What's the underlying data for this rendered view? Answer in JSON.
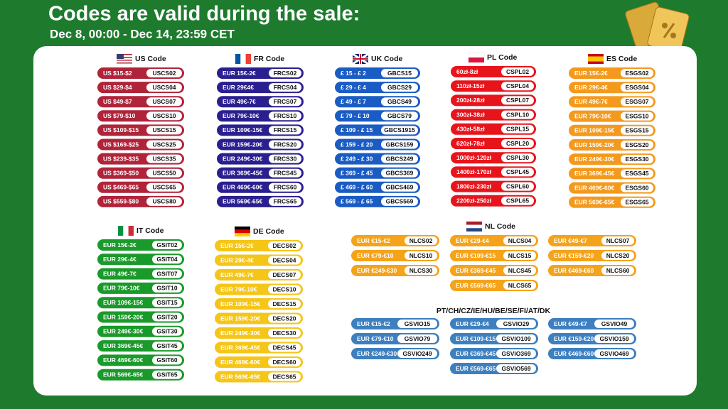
{
  "header": {
    "title": "Codes are valid during the sale:",
    "subtitle": "Dec 8, 00:00 - Dec 14, 23:59 CET"
  },
  "sections": [
    {
      "title": "US Code",
      "columns": [
        [
          [
            "US $15-$2",
            "USCS02"
          ],
          [
            "US $29-$4",
            "USCS04"
          ],
          [
            "US $49-$7",
            "USCS07"
          ],
          [
            "US $79-$10",
            "USCS10"
          ],
          [
            "US $109-$15",
            "USCS15"
          ],
          [
            "US $169-$25",
            "USCS25"
          ],
          [
            "US $239-$35",
            "USCS35"
          ],
          [
            "US $369-$50",
            "USCS50"
          ],
          [
            "US $469-$65",
            "USCS65"
          ],
          [
            "US $559-$80",
            "USCS80"
          ]
        ]
      ]
    },
    {
      "title": "FR Code",
      "columns": [
        [
          [
            "EUR 15€-2€",
            "FRCS02"
          ],
          [
            "EUR 29€4€",
            "FRCS04"
          ],
          [
            "EUR 49€-7€",
            "FRCS07"
          ],
          [
            "EUR 79€-10€",
            "FRCS10"
          ],
          [
            "EUR 109€-15€",
            "FRCS15"
          ],
          [
            "EUR 159€-20€",
            "FRCS20"
          ],
          [
            "EUR 249€-30€",
            "FRCS30"
          ],
          [
            "EUR 369€-45€",
            "FRCS45"
          ],
          [
            "EUR 469€-60€",
            "FRCS60"
          ],
          [
            "EUR 569€-65€",
            "FRCS65"
          ]
        ]
      ]
    },
    {
      "title": "UK Code",
      "columns": [
        [
          [
            "£ 15 - £ 2",
            "GBCS15"
          ],
          [
            "£ 29 - £ 4",
            "GBCS29"
          ],
          [
            "£ 49 - £ 7",
            "GBCS49"
          ],
          [
            "£ 79 - £ 10",
            "GBCS79"
          ],
          [
            "£ 109 - £ 15",
            "GBCS1915"
          ],
          [
            "£ 159 - £ 20",
            "GBCS159"
          ],
          [
            "£ 249 - £ 30",
            "GBCS249"
          ],
          [
            "£ 369 - £ 45",
            "GBCS369"
          ],
          [
            "£ 469 - £ 60",
            "GBCS469"
          ],
          [
            "£ 569 - £ 65",
            "GBCS569"
          ]
        ]
      ]
    },
    {
      "title": "PL Code",
      "columns": [
        [
          [
            "60zł-8zł",
            "CSPL02"
          ],
          [
            "110zł-15zł",
            "CSPL04"
          ],
          [
            "200zł-28zł",
            "CSPL07"
          ],
          [
            "300zł-38zł",
            "CSPL10"
          ],
          [
            "430zł-58zł",
            "CSPL15"
          ],
          [
            "620zł-78zł",
            "CSPL20"
          ],
          [
            "1000zł-120zł",
            "CSPL30"
          ],
          [
            "1400zł-170zł",
            "CSPL45"
          ],
          [
            "1800zł-230zł",
            "CSPL60"
          ],
          [
            "2200zł-250zł",
            "CSPL65"
          ]
        ]
      ]
    },
    {
      "title": "ES Code",
      "columns": [
        [
          [
            "EUR 15€-2€",
            "ESGS02"
          ],
          [
            "EUR 29€-4€",
            "ESGS04"
          ],
          [
            "EUR 49€-7€",
            "ESGS07"
          ],
          [
            "EUR 79€-10€",
            "ESGS10"
          ],
          [
            "EUR 109€-15€",
            "ESGS15"
          ],
          [
            "EUR 159€-20€",
            "ESGS20"
          ],
          [
            "EUR 249€-30€",
            "ESGS30"
          ],
          [
            "EUR 369€-45€",
            "ESGS45"
          ],
          [
            "EUR 469€-60€",
            "ESGS60"
          ],
          [
            "EUR 569€-65€",
            "ESGS65"
          ]
        ]
      ]
    },
    {
      "title": "IT Code",
      "columns": [
        [
          [
            "EUR 15€-2€",
            "GSIT02"
          ],
          [
            "EUR 29€-4€",
            "GSIT04"
          ],
          [
            "EUR 49€-7€",
            "GSIT07"
          ],
          [
            "EUR 79€-10€",
            "GSIT10"
          ],
          [
            "EUR 109€-15€",
            "GSIT15"
          ],
          [
            "EUR 159€-20€",
            "GSIT20"
          ],
          [
            "EUR 249€-30€",
            "GSIT30"
          ],
          [
            "EUR 369€-45€",
            "GSIT45"
          ],
          [
            "EUR 469€-60€",
            "GSIT60"
          ],
          [
            "EUR 569€-65€",
            "GSIT65"
          ]
        ]
      ]
    },
    {
      "title": "DE Code",
      "columns": [
        [
          [
            "EUR 15€-2€",
            "DECS02"
          ],
          [
            "EUR 29€-4€",
            "DECS04"
          ],
          [
            "EUR 49€-7€",
            "DECS07"
          ],
          [
            "EUR 79€-10€",
            "DECS10"
          ],
          [
            "EUR 109€-15€",
            "DECS15"
          ],
          [
            "EUR 159€-20€",
            "DECS20"
          ],
          [
            "EUR 249€-30€",
            "DECS30"
          ],
          [
            "EUR 369€-45€",
            "DECS45"
          ],
          [
            "EUR 469€-60€",
            "DECS60"
          ],
          [
            "EUR 569€-65€",
            "DECS65"
          ]
        ]
      ]
    },
    {
      "title": "NL Code",
      "columns": [
        [
          [
            "EUR €15-€2",
            "NLCS02"
          ],
          [
            "EUR €79-€10",
            "NLCS10"
          ],
          [
            "EUR €249-€30",
            "NLCS30"
          ]
        ],
        [
          [
            "EUR €29-€4",
            "NLCS04"
          ],
          [
            "EUR €109-€15",
            "NLCS15"
          ],
          [
            "EUR €369-€45",
            "NLCS45"
          ],
          [
            "EUR €569-€65",
            "NLCS65"
          ]
        ],
        [
          [
            "EUR €49-€7",
            "NLCS07"
          ],
          [
            "EUR €159-€20",
            "NLCS20"
          ],
          [
            "EUR €469-€60",
            "NLCS60"
          ]
        ]
      ]
    },
    {
      "title": "PT/CH/CZ/IE/HU/BE/SE/FI/AT/DK",
      "columns": [
        [
          [
            "EUR €15-€2",
            "GSVIO15"
          ],
          [
            "EUR €79-€10",
            "GSVIO79"
          ],
          [
            "EUR €249-€30",
            "GSVIO249"
          ]
        ],
        [
          [
            "EUR €29-€4",
            "GSVIO29"
          ],
          [
            "EUR €109-€15",
            "GSVIO109"
          ],
          [
            "EUR €369-€45",
            "GSVIO369"
          ],
          [
            "EUR €569-€65",
            "GSVIO569"
          ]
        ],
        [
          [
            "EUR €49-€7",
            "GSVIO49"
          ],
          [
            "EUR €159-€20",
            "GSVIO159"
          ],
          [
            "EUR €469-€60",
            "GSVIO469"
          ]
        ]
      ]
    }
  ]
}
